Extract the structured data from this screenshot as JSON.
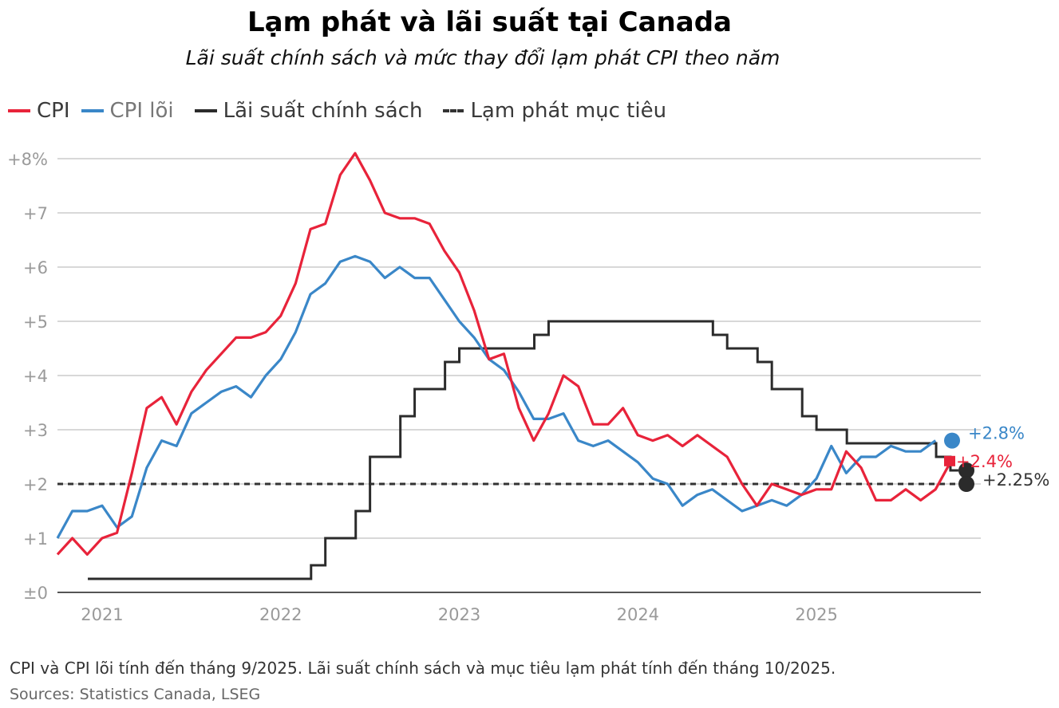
{
  "title": "Lạm phát và lãi suất tại Canada",
  "subtitle": "Lãi suất chính sách và mức thay đổi lạm phát CPI theo năm",
  "legend": {
    "cpi": "CPI",
    "core": "CPI lõi",
    "policy": "Lãi suất chính sách",
    "target": "Lạm phát mục tiêu"
  },
  "footer": {
    "note": "CPI và CPI lõi tính đến tháng 9/2025. Lãi suất chính sách và mục tiêu lạm phát tính đến tháng 10/2025.",
    "sources": "Sources: Statistics Canada, LSEG"
  },
  "colors": {
    "cpi": "#e8233a",
    "core": "#3a87c8",
    "policy": "#2b2b2b",
    "target": "#333333",
    "grid": "#cccccc"
  },
  "chart_data": {
    "type": "line",
    "title": "Lạm phát và lãi suất tại Canada",
    "xlabel": "",
    "ylabel": "",
    "ylim": [
      0,
      8
    ],
    "xlim": [
      2020.75,
      2025.92
    ],
    "y_ticks": [
      {
        "value": 0,
        "label": "±0"
      },
      {
        "value": 1,
        "label": "+1"
      },
      {
        "value": 2,
        "label": "+2"
      },
      {
        "value": 3,
        "label": "+3"
      },
      {
        "value": 4,
        "label": "+4"
      },
      {
        "value": 5,
        "label": "+5"
      },
      {
        "value": 6,
        "label": "+6"
      },
      {
        "value": 7,
        "label": "+7"
      },
      {
        "value": 8,
        "label": "+8%"
      }
    ],
    "x_ticks": [
      {
        "value": 2021,
        "label": "2021"
      },
      {
        "value": 2022,
        "label": "2022"
      },
      {
        "value": 2023,
        "label": "2023"
      },
      {
        "value": 2024,
        "label": "2024"
      },
      {
        "value": 2025,
        "label": "2025"
      }
    ],
    "series": [
      {
        "name": "CPI",
        "key": "cpi",
        "end_label": "+2.4%",
        "start": 2020.75,
        "step": 0.08333,
        "values": [
          0.7,
          1.0,
          0.7,
          1.0,
          1.1,
          2.2,
          3.4,
          3.6,
          3.1,
          3.7,
          4.1,
          4.4,
          4.7,
          4.7,
          4.8,
          5.1,
          5.7,
          6.7,
          6.8,
          7.7,
          8.1,
          7.6,
          7.0,
          6.9,
          6.9,
          6.8,
          6.3,
          5.9,
          5.2,
          4.3,
          4.4,
          3.4,
          2.8,
          3.3,
          4.0,
          3.8,
          3.1,
          3.1,
          3.4,
          2.9,
          2.8,
          2.9,
          2.7,
          2.9,
          2.7,
          2.5,
          2.0,
          1.6,
          2.0,
          1.9,
          1.8,
          1.9,
          1.9,
          2.6,
          2.3,
          1.7,
          1.7,
          1.9,
          1.7,
          1.9,
          2.4
        ]
      },
      {
        "name": "CPI lõi",
        "key": "core",
        "end_label": "+2.8%",
        "start": 2020.75,
        "step": 0.08333,
        "values": [
          1.0,
          1.5,
          1.5,
          1.6,
          1.2,
          1.4,
          2.3,
          2.8,
          2.7,
          3.3,
          3.5,
          3.7,
          3.8,
          3.6,
          4.0,
          4.3,
          4.8,
          5.5,
          5.7,
          6.1,
          6.2,
          6.1,
          5.8,
          6.0,
          5.8,
          5.8,
          5.4,
          5.0,
          4.7,
          4.3,
          4.1,
          3.7,
          3.2,
          3.2,
          3.3,
          2.8,
          2.7,
          2.8,
          2.6,
          2.4,
          2.1,
          2.0,
          1.6,
          1.8,
          1.9,
          1.7,
          1.5,
          1.6,
          1.7,
          1.6,
          1.8,
          2.1,
          2.7,
          2.2,
          2.5,
          2.5,
          2.7,
          2.6,
          2.6,
          2.8
        ]
      },
      {
        "name": "Lãi suất chính sách",
        "key": "policy",
        "end_label": "+2.25%",
        "step_chart": true,
        "points": [
          [
            2020.92,
            0.25
          ],
          [
            2022.17,
            0.5
          ],
          [
            2022.25,
            1.0
          ],
          [
            2022.42,
            1.5
          ],
          [
            2022.5,
            2.5
          ],
          [
            2022.67,
            3.25
          ],
          [
            2022.75,
            3.75
          ],
          [
            2022.92,
            4.25
          ],
          [
            2023.0,
            4.5
          ],
          [
            2023.42,
            4.75
          ],
          [
            2023.5,
            5.0
          ],
          [
            2024.42,
            4.75
          ],
          [
            2024.5,
            4.5
          ],
          [
            2024.67,
            4.25
          ],
          [
            2024.75,
            3.75
          ],
          [
            2024.92,
            3.25
          ],
          [
            2025.0,
            3.0
          ],
          [
            2025.17,
            2.75
          ],
          [
            2025.67,
            2.5
          ],
          [
            2025.75,
            2.25
          ]
        ]
      },
      {
        "name": "Lạm phát mục tiêu",
        "key": "target",
        "value": 2.0,
        "dashed": true
      }
    ]
  }
}
